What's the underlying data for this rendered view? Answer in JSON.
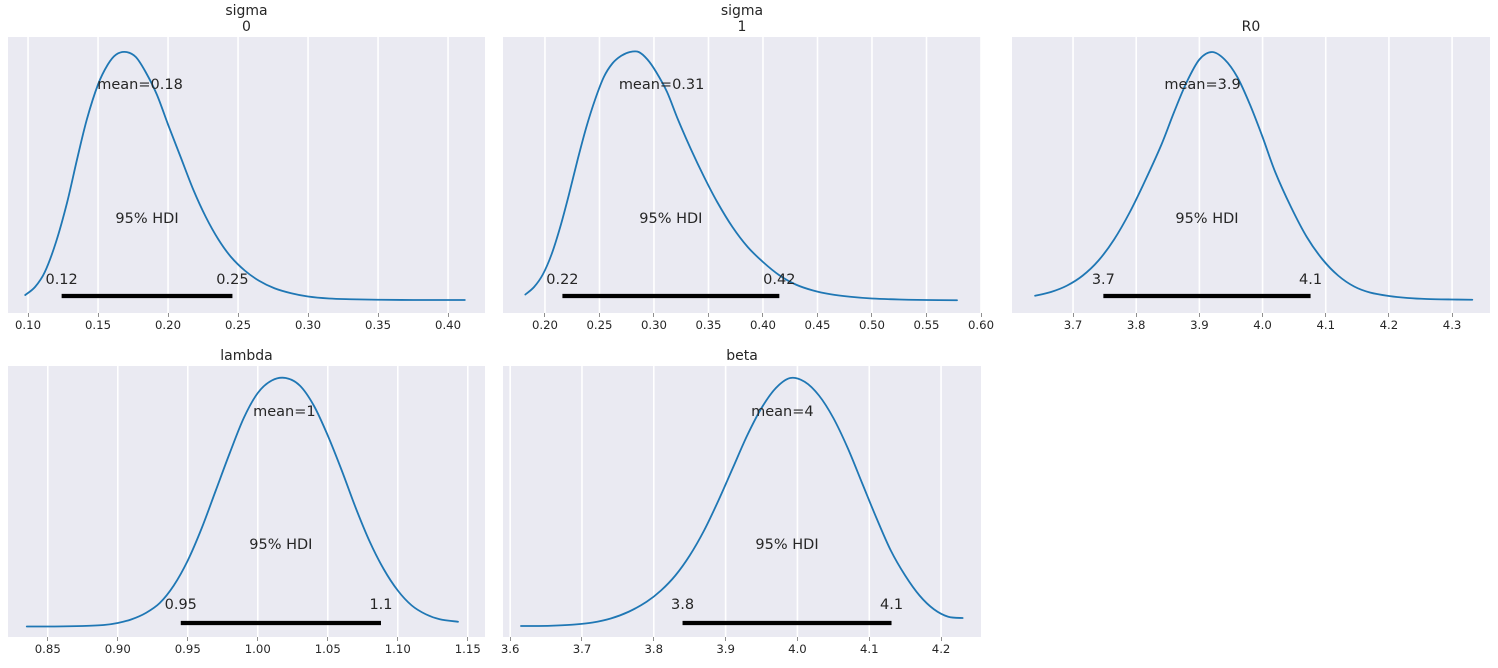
{
  "figure": {
    "background": "#ffffff",
    "axes_background": "#eaeaf2",
    "grid_color": "#ffffff",
    "curve_color": "#1f77b4",
    "hdi_bar_color": "#000000",
    "text_color": "#262626",
    "tick_mark_color": "#8f8f8f"
  },
  "chart_data": [
    {
      "type": "line",
      "plot_kind": "posterior-kde",
      "slug": "sigma-0",
      "title_lines": [
        "sigma",
        "0"
      ],
      "mean_label": "mean=0.18",
      "mean_value": 0.18,
      "mean_x": 0.18,
      "hdi_label": "95% HDI",
      "hdi_prob": 0.95,
      "hdi": [
        0.124,
        0.246
      ],
      "hdi_lo_label": "0.12",
      "hdi_hi_label": "0.25",
      "xlim": [
        0.0857,
        0.4264
      ],
      "x_ticks": [
        0.1,
        0.15,
        0.2,
        0.25,
        0.3,
        0.35,
        0.4
      ],
      "x_tick_labels": [
        "0.10",
        "0.15",
        "0.20",
        "0.25",
        "0.30",
        "0.35",
        "0.40"
      ],
      "curve": {
        "x": [
          0.098,
          0.105,
          0.112,
          0.12,
          0.128,
          0.135,
          0.142,
          0.15,
          0.157,
          0.163,
          0.17,
          0.177,
          0.184,
          0.192,
          0.2,
          0.209,
          0.218,
          0.227,
          0.236,
          0.245,
          0.255,
          0.265,
          0.276,
          0.288,
          0.3,
          0.315,
          0.33,
          0.35,
          0.375,
          0.4,
          0.412
        ],
        "y": [
          0.028,
          0.06,
          0.12,
          0.24,
          0.4,
          0.57,
          0.73,
          0.87,
          0.95,
          0.99,
          1.0,
          0.98,
          0.92,
          0.83,
          0.71,
          0.58,
          0.45,
          0.34,
          0.25,
          0.18,
          0.125,
          0.085,
          0.055,
          0.035,
          0.022,
          0.014,
          0.011,
          0.009,
          0.008,
          0.008,
          0.008
        ]
      }
    },
    {
      "type": "line",
      "plot_kind": "posterior-kde",
      "slug": "sigma-1",
      "title_lines": [
        "sigma",
        "1"
      ],
      "mean_label": "mean=0.31",
      "mean_value": 0.31,
      "mean_x": 0.307,
      "hdi_label": "95% HDI",
      "hdi_prob": 0.95,
      "hdi": [
        0.216,
        0.415
      ],
      "hdi_lo_label": "0.22",
      "hdi_hi_label": "0.42",
      "xlim": [
        0.1615,
        0.6
      ],
      "x_ticks": [
        0.2,
        0.25,
        0.3,
        0.35,
        0.4,
        0.45,
        0.5,
        0.55,
        0.6
      ],
      "x_tick_labels": [
        "0.20",
        "0.25",
        "0.30",
        "0.35",
        "0.40",
        "0.45",
        "0.50",
        "0.55",
        "0.60"
      ],
      "curve": {
        "x": [
          0.182,
          0.19,
          0.198,
          0.206,
          0.214,
          0.222,
          0.23,
          0.238,
          0.246,
          0.254,
          0.262,
          0.27,
          0.278,
          0.286,
          0.294,
          0.302,
          0.312,
          0.322,
          0.334,
          0.346,
          0.358,
          0.372,
          0.386,
          0.4,
          0.415,
          0.43,
          0.446,
          0.462,
          0.48,
          0.5,
          0.525,
          0.55,
          0.578
        ],
        "y": [
          0.03,
          0.06,
          0.11,
          0.19,
          0.3,
          0.43,
          0.57,
          0.7,
          0.81,
          0.9,
          0.955,
          0.985,
          1.0,
          1.0,
          0.97,
          0.92,
          0.84,
          0.73,
          0.61,
          0.5,
          0.4,
          0.3,
          0.22,
          0.16,
          0.107,
          0.07,
          0.046,
          0.031,
          0.021,
          0.014,
          0.01,
          0.008,
          0.007
        ]
      }
    },
    {
      "type": "line",
      "plot_kind": "posterior-kde",
      "slug": "r0",
      "title_lines": [
        "R0"
      ],
      "mean_label": "mean=3.9",
      "mean_value": 3.9,
      "mean_x": 3.905,
      "hdi_label": "95% HDI",
      "hdi_prob": 0.95,
      "hdi": [
        3.748,
        4.076
      ],
      "hdi_lo_label": "3.7",
      "hdi_hi_label": "4.1",
      "xlim": [
        3.6034,
        4.36
      ],
      "x_ticks": [
        3.7,
        3.8,
        3.9,
        4.0,
        4.1,
        4.2,
        4.3
      ],
      "x_tick_labels": [
        "3.7",
        "3.8",
        "3.9",
        "4.0",
        "4.1",
        "4.2",
        "4.3"
      ],
      "curve": {
        "x": [
          3.64,
          3.665,
          3.69,
          3.715,
          3.74,
          3.765,
          3.79,
          3.815,
          3.84,
          3.86,
          3.88,
          3.9,
          3.92,
          3.94,
          3.96,
          3.98,
          4.0,
          4.02,
          4.045,
          4.07,
          4.095,
          4.12,
          4.145,
          4.17,
          4.2,
          4.23,
          4.26,
          4.3,
          4.332
        ],
        "y": [
          0.025,
          0.04,
          0.065,
          0.105,
          0.165,
          0.25,
          0.36,
          0.49,
          0.63,
          0.76,
          0.88,
          0.97,
          1.0,
          0.97,
          0.9,
          0.79,
          0.66,
          0.52,
          0.38,
          0.26,
          0.17,
          0.105,
          0.062,
          0.038,
          0.024,
          0.016,
          0.012,
          0.01,
          0.009
        ]
      }
    },
    {
      "type": "line",
      "plot_kind": "posterior-kde",
      "slug": "lambda",
      "title_lines": [
        "lambda"
      ],
      "mean_label": "mean=1",
      "mean_value": 1,
      "mean_x": 1.019,
      "hdi_label": "95% HDI",
      "hdi_prob": 0.95,
      "hdi": [
        0.945,
        1.088
      ],
      "hdi_lo_label": "0.95",
      "hdi_hi_label": "1.1",
      "xlim": [
        0.8216,
        1.1623
      ],
      "x_ticks": [
        0.85,
        0.9,
        0.95,
        1.0,
        1.05,
        1.1,
        1.15
      ],
      "x_tick_labels": [
        "0.85",
        "0.90",
        "0.95",
        "1.00",
        "1.05",
        "1.10",
        "1.15"
      ],
      "curve": {
        "x": [
          0.835,
          0.855,
          0.875,
          0.89,
          0.9,
          0.91,
          0.92,
          0.93,
          0.94,
          0.95,
          0.96,
          0.97,
          0.98,
          0.99,
          1.0,
          1.01,
          1.02,
          1.03,
          1.04,
          1.05,
          1.06,
          1.07,
          1.08,
          1.09,
          1.1,
          1.11,
          1.12,
          1.13,
          1.143
        ],
        "y": [
          0.006,
          0.006,
          0.008,
          0.012,
          0.02,
          0.035,
          0.06,
          0.1,
          0.17,
          0.27,
          0.4,
          0.55,
          0.7,
          0.84,
          0.94,
          0.99,
          1.0,
          0.97,
          0.89,
          0.77,
          0.63,
          0.48,
          0.345,
          0.235,
          0.15,
          0.09,
          0.055,
          0.035,
          0.025
        ]
      }
    },
    {
      "type": "line",
      "plot_kind": "posterior-kde",
      "slug": "beta",
      "title_lines": [
        "beta"
      ],
      "mean_label": "mean=4",
      "mean_value": 4,
      "mean_x": 3.979,
      "hdi_label": "95% HDI",
      "hdi_prob": 0.95,
      "hdi": [
        3.84,
        4.131
      ],
      "hdi_lo_label": "3.8",
      "hdi_hi_label": "4.1",
      "xlim": [
        3.59,
        4.2556
      ],
      "x_ticks": [
        3.6,
        3.7,
        3.8,
        3.9,
        4.0,
        4.1,
        4.2
      ],
      "x_tick_labels": [
        "3.6",
        "3.7",
        "3.8",
        "3.9",
        "4.0",
        "4.1",
        "4.2"
      ],
      "curve": {
        "x": [
          3.615,
          3.64,
          3.665,
          3.69,
          3.715,
          3.74,
          3.765,
          3.79,
          3.81,
          3.83,
          3.85,
          3.87,
          3.89,
          3.91,
          3.93,
          3.95,
          3.97,
          3.99,
          4.01,
          4.03,
          4.05,
          4.07,
          4.09,
          4.11,
          4.13,
          4.15,
          4.17,
          4.19,
          4.21,
          4.23
        ],
        "y": [
          0.008,
          0.008,
          0.01,
          0.014,
          0.022,
          0.038,
          0.065,
          0.105,
          0.15,
          0.21,
          0.29,
          0.39,
          0.51,
          0.64,
          0.77,
          0.88,
          0.96,
          1.0,
          0.985,
          0.93,
          0.84,
          0.72,
          0.58,
          0.44,
          0.31,
          0.21,
          0.13,
          0.075,
          0.045,
          0.04
        ]
      }
    }
  ]
}
